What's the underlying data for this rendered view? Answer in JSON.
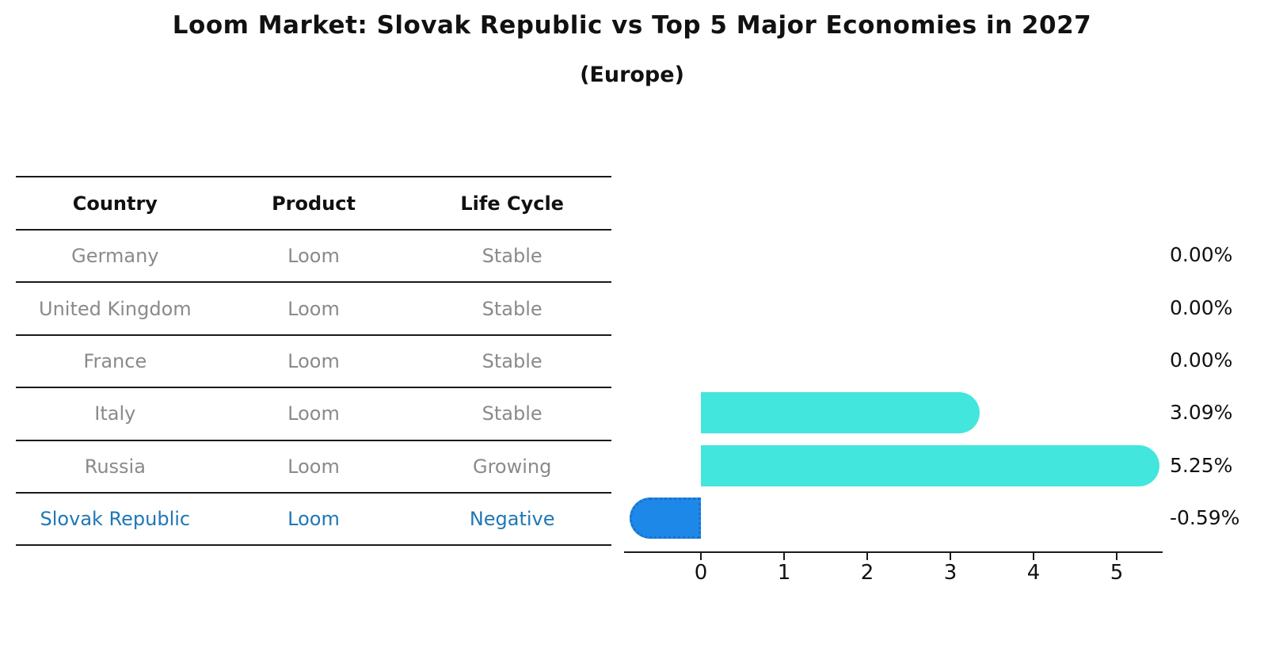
{
  "title": "Loom Market: Slovak Republic vs Top 5 Major Economies in 2027",
  "subtitle": "(Europe)",
  "table": {
    "headers": [
      "Country",
      "Product",
      "Life Cycle"
    ],
    "rows": [
      {
        "country": "Germany",
        "product": "Loom",
        "life_cycle": "Stable",
        "highlight": false
      },
      {
        "country": "United Kingdom",
        "product": "Loom",
        "life_cycle": "Stable",
        "highlight": false
      },
      {
        "country": "France",
        "product": "Loom",
        "life_cycle": "Stable",
        "highlight": false
      },
      {
        "country": "Italy",
        "product": "Loom",
        "life_cycle": "Stable",
        "highlight": false
      },
      {
        "country": "Russia",
        "product": "Loom",
        "life_cycle": "Growing",
        "highlight": false
      },
      {
        "country": "Slovak Republic",
        "product": "Loom",
        "life_cycle": "Negative",
        "highlight": true
      }
    ]
  },
  "chart_data": {
    "type": "bar",
    "orientation": "horizontal",
    "title": "Loom Market: Slovak Republic vs Top 5 Major Economies in 2027",
    "subtitle": "(Europe)",
    "categories": [
      "Germany",
      "United Kingdom",
      "France",
      "Italy",
      "Russia",
      "Slovak Republic"
    ],
    "values": [
      0.0,
      0.0,
      0.0,
      3.09,
      5.25,
      -0.59
    ],
    "value_labels": [
      "0.00%",
      "0.00%",
      "0.00%",
      "3.09%",
      "5.25%",
      "-0.59%"
    ],
    "x_ticks": [
      0,
      1,
      2,
      3,
      4,
      5
    ],
    "xlim": [
      -0.88,
      5.54
    ],
    "xlabel": "",
    "ylabel": "",
    "grid": false,
    "legend": false
  },
  "colors": {
    "bar_positive": "#43E6DC",
    "bar_negative": "#1E88E8",
    "bar_negative_border": "#1873CC",
    "highlight_text": "#1f77b4",
    "table_text": "#8a8a8a",
    "heading_text": "#111111",
    "axis": "#1a1a1a"
  }
}
